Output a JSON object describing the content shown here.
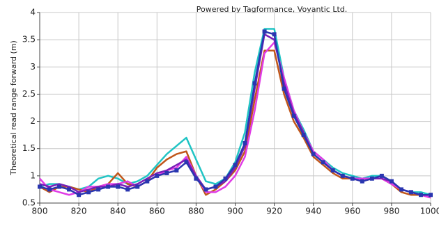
{
  "chart_data": {
    "type": "line",
    "annotation": "Powered by Tagformance, Voyantic Ltd.",
    "ylabel": "Theoretical read range forward (m)",
    "x": [
      800,
      805,
      810,
      815,
      820,
      825,
      830,
      835,
      840,
      845,
      850,
      855,
      860,
      865,
      870,
      875,
      880,
      885,
      890,
      895,
      900,
      905,
      910,
      915,
      920,
      925,
      930,
      935,
      940,
      945,
      950,
      955,
      960,
      965,
      970,
      975,
      980,
      985,
      990,
      995,
      1000
    ],
    "series": [
      {
        "color": "#20c4c4",
        "values": [
          0.8,
          0.85,
          0.85,
          0.8,
          0.75,
          0.8,
          0.95,
          1.0,
          0.95,
          0.85,
          0.9,
          1.0,
          1.2,
          1.4,
          1.55,
          1.7,
          1.3,
          0.9,
          0.85,
          0.95,
          1.25,
          1.8,
          2.9,
          3.7,
          3.7,
          2.8,
          2.2,
          1.85,
          1.45,
          1.3,
          1.15,
          1.05,
          1.0,
          0.95,
          1.0,
          1.0,
          0.9,
          0.75,
          0.7,
          0.7,
          0.65
        ]
      },
      {
        "color": "#c0561a",
        "values": [
          0.8,
          0.7,
          0.8,
          0.8,
          0.75,
          0.7,
          0.8,
          0.85,
          1.05,
          0.85,
          0.8,
          0.9,
          1.15,
          1.3,
          1.4,
          1.45,
          1.0,
          0.65,
          0.75,
          0.9,
          1.1,
          1.45,
          2.4,
          3.3,
          3.3,
          2.5,
          2.0,
          1.7,
          1.35,
          1.2,
          1.05,
          0.95,
          0.95,
          0.9,
          0.95,
          0.95,
          0.85,
          0.7,
          0.65,
          0.65,
          0.6
        ]
      },
      {
        "color": "#e03ce6",
        "values": [
          0.95,
          0.75,
          0.7,
          0.65,
          0.7,
          0.8,
          0.8,
          0.85,
          0.85,
          0.9,
          0.8,
          0.9,
          1.0,
          1.1,
          1.15,
          1.35,
          1.0,
          0.7,
          0.7,
          0.8,
          1.0,
          1.35,
          2.2,
          3.25,
          3.45,
          2.8,
          2.2,
          1.8,
          1.45,
          1.3,
          1.1,
          1.0,
          0.95,
          0.95,
          0.95,
          0.95,
          0.85,
          0.75,
          0.7,
          0.65,
          0.6
        ]
      },
      {
        "color": "#7a1fb8",
        "values": [
          0.85,
          0.8,
          0.85,
          0.8,
          0.7,
          0.75,
          0.8,
          0.8,
          0.85,
          0.8,
          0.85,
          0.95,
          1.05,
          1.1,
          1.2,
          1.3,
          1.0,
          0.75,
          0.8,
          0.9,
          1.15,
          1.55,
          2.6,
          3.6,
          3.5,
          2.7,
          2.15,
          1.8,
          1.4,
          1.25,
          1.1,
          1.0,
          0.95,
          0.9,
          0.95,
          0.95,
          0.9,
          0.75,
          0.7,
          0.65,
          0.65
        ]
      },
      {
        "color": "#2a36b0",
        "marker": "square",
        "values": [
          0.8,
          0.75,
          0.8,
          0.75,
          0.65,
          0.7,
          0.75,
          0.8,
          0.8,
          0.75,
          0.8,
          0.9,
          1.0,
          1.05,
          1.1,
          1.25,
          0.95,
          0.75,
          0.8,
          0.95,
          1.2,
          1.6,
          2.7,
          3.65,
          3.6,
          2.6,
          2.1,
          1.75,
          1.4,
          1.25,
          1.1,
          1.0,
          0.95,
          0.9,
          0.95,
          1.0,
          0.9,
          0.75,
          0.7,
          0.65,
          0.65
        ]
      }
    ],
    "xlim": [
      800,
      1000
    ],
    "ylim": [
      0.5,
      4
    ],
    "xticks": [
      800,
      820,
      840,
      860,
      880,
      900,
      920,
      940,
      960,
      980,
      1000
    ],
    "yticks": [
      0.5,
      1,
      1.5,
      2,
      2.5,
      3,
      3.5,
      4
    ],
    "grid": true
  }
}
